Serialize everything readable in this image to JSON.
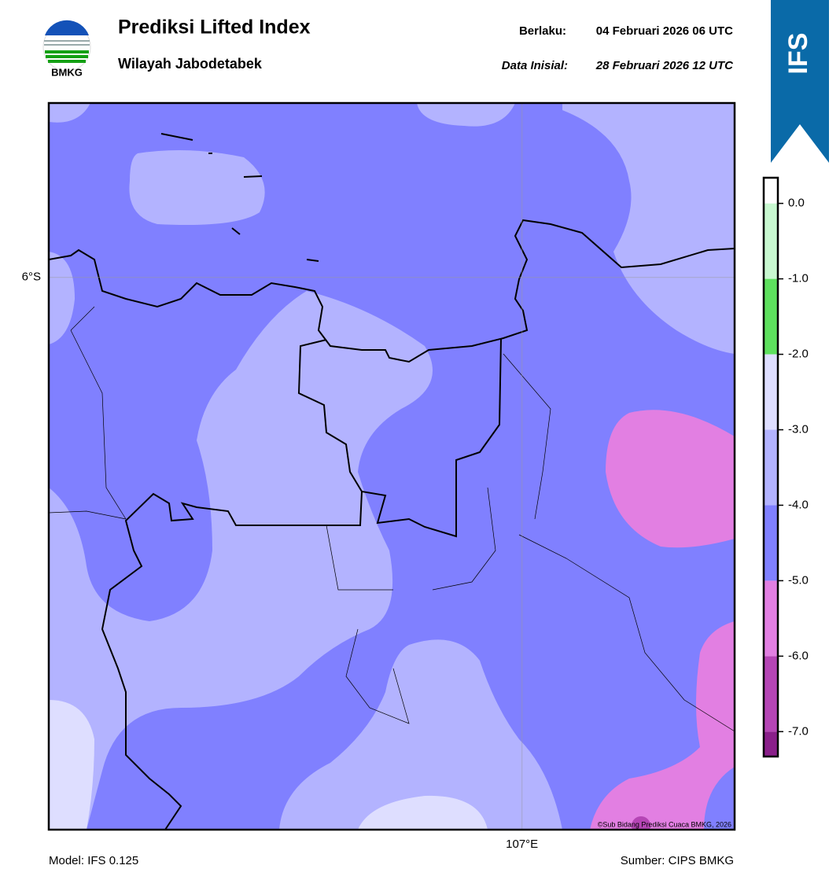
{
  "header": {
    "logo_text": "BMKG",
    "title": "Prediksi Lifted Index",
    "subtitle": "Wilayah Jabodetabek",
    "valid_label": "Berlaku:",
    "valid_time": "04 Februari 2026 06 UTC",
    "init_label": "Data Inisial:",
    "init_time": "28 Februari 2026 12 UTC",
    "badge": "IFS"
  },
  "map": {
    "lon_lim": [
      106.31,
      107.31
    ],
    "lat_lim": [
      -5.76,
      -6.76
    ],
    "lat_ticks": [
      {
        "value": -6,
        "label": "6°S"
      }
    ],
    "lon_ticks": [
      {
        "value": 107,
        "label": "107°E"
      }
    ],
    "credit": "©Sub Bidang Prediksi Cuaca BMKG, 2026"
  },
  "colorbar": {
    "lim": [
      -7.33,
      0.34
    ],
    "bounds": [
      -7.33,
      -7,
      -6,
      -5,
      -4,
      -3,
      -2,
      -1,
      0,
      0.34
    ],
    "colors": [
      "#8a1f8a",
      "#b545b5",
      "#e27fe2",
      "#8080ff",
      "#b3b3ff",
      "#dedeff",
      "#5ee05e",
      "#c8f8d0",
      "#ffffff"
    ],
    "ticks": [
      {
        "value": 0,
        "label": "0.0"
      },
      {
        "value": -1,
        "label": "-1.0"
      },
      {
        "value": -2,
        "label": "-2.0"
      },
      {
        "value": -3,
        "label": "-3.0"
      },
      {
        "value": -4,
        "label": "-4.0"
      },
      {
        "value": -5,
        "label": "-5.0"
      },
      {
        "value": -6,
        "label": "-6.0"
      },
      {
        "value": -7,
        "label": "-7.0"
      }
    ]
  },
  "footer": {
    "model": "Model: IFS 0.125",
    "source": "Sumber: CIPS BMKG"
  }
}
